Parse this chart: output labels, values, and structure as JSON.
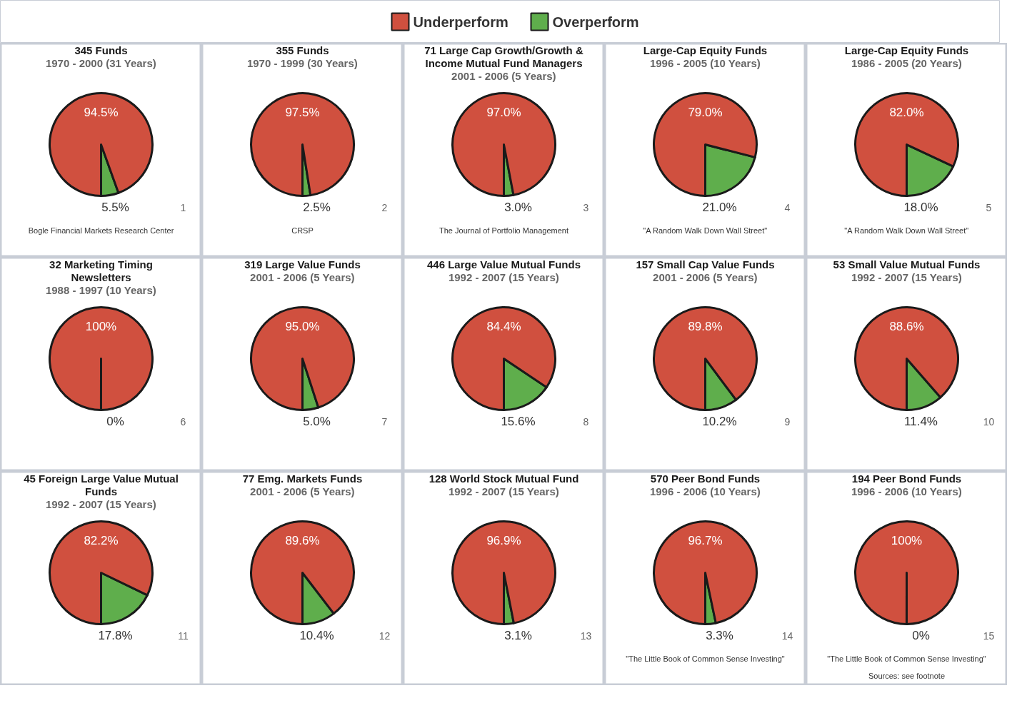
{
  "chart_data": [
    {
      "type": "pie",
      "title": "345 Funds",
      "subtitle": "1970 - 2000 (31 Years)",
      "categories": [
        "Underperform",
        "Overperform"
      ],
      "values": [
        94.5,
        5.5
      ],
      "value_labels": [
        "94.5%",
        "5.5%"
      ],
      "colors": [
        "#d0503f",
        "#5fae4c"
      ],
      "legend": "top",
      "annotations": [
        "Bogle Financial Markets Research Center",
        "1"
      ]
    },
    {
      "type": "pie",
      "title": "355 Funds",
      "subtitle": "1970 - 1999 (30 Years)",
      "categories": [
        null,
        null
      ],
      "values": [
        97.5,
        2.5
      ],
      "value_labels": [
        "97.5%",
        "2.5%"
      ],
      "colors": [
        "#d0503f",
        "#5fae4c"
      ],
      "annotations": [
        "CRSP",
        "2"
      ]
    },
    {
      "type": "pie",
      "title": "71 Large Cap Growth/Growth &\nIncome Mutual Fund Managers",
      "subtitle": "2001 - 2006 (5 Years)",
      "categories": [
        null,
        null
      ],
      "values": [
        97.0,
        3.0
      ],
      "value_labels": [
        "97.0%",
        "3.0%"
      ],
      "colors": [
        "#d0503f",
        "#5fae4c"
      ],
      "annotations": [
        "The Journal of Portfolio Management",
        "3"
      ]
    },
    {
      "type": "pie",
      "title": "Large-Cap Equity Funds",
      "subtitle": "1996 - 2005 (10 Years)",
      "categories": [
        null,
        null
      ],
      "values": [
        79.0,
        21.0
      ],
      "value_labels": [
        "79.0%",
        "21.0%"
      ],
      "colors": [
        "#d0503f",
        "#5fae4c"
      ],
      "annotations": [
        "\"A Random Walk Down Wall Street\"",
        "4"
      ]
    },
    {
      "type": "pie",
      "title": "Large-Cap Equity Funds",
      "subtitle": "1986 - 2005 (20 Years)",
      "categories": [
        null,
        null
      ],
      "values": [
        82.0,
        18.0
      ],
      "value_labels": [
        "82.0%",
        "18.0%"
      ],
      "colors": [
        "#d0503f",
        "#5fae4c"
      ],
      "annotations": [
        "\"A Random Walk Down Wall Street\"",
        "5"
      ]
    },
    {
      "type": "pie",
      "title": "32 Marketing Timing\nNewsletters",
      "subtitle": "1988 - 1997 (10 Years)",
      "categories": [
        null,
        null
      ],
      "values": [
        100,
        0
      ],
      "value_labels": [
        "100%",
        "0%"
      ],
      "colors": [
        "#d0503f",
        "#5fae4c"
      ],
      "annotations": [
        "6"
      ]
    },
    {
      "type": "pie",
      "title": "319 Large Value Funds",
      "subtitle": "2001 - 2006 (5 Years)",
      "categories": [
        null,
        null
      ],
      "values": [
        95.0,
        5.0
      ],
      "value_labels": [
        "95.0%",
        "5.0%"
      ],
      "colors": [
        "#d0503f",
        "#5fae4c"
      ],
      "annotations": [
        "7"
      ]
    },
    {
      "type": "pie",
      "title": "446 Large Value Mutual Funds",
      "subtitle": "1992 - 2007 (15 Years)",
      "categories": [
        null,
        null
      ],
      "values": [
        84.4,
        15.6
      ],
      "value_labels": [
        "84.4%",
        "15.6%"
      ],
      "colors": [
        "#d0503f",
        "#5fae4c"
      ],
      "annotations": [
        "8"
      ]
    },
    {
      "type": "pie",
      "title": "157 Small Cap Value Funds",
      "subtitle": "2001 - 2006 (5 Years)",
      "categories": [
        null,
        null
      ],
      "values": [
        89.8,
        10.2
      ],
      "value_labels": [
        "89.8%",
        "10.2%"
      ],
      "colors": [
        "#d0503f",
        "#5fae4c"
      ],
      "annotations": [
        "9"
      ]
    },
    {
      "type": "pie",
      "title": "53 Small Value Mutual Funds",
      "subtitle": "1992 - 2007 (15 Years)",
      "categories": [
        null,
        null
      ],
      "values": [
        88.6,
        11.4
      ],
      "value_labels": [
        "88.6%",
        "11.4%"
      ],
      "colors": [
        "#d0503f",
        "#5fae4c"
      ],
      "annotations": [
        "10"
      ]
    },
    {
      "type": "pie",
      "title": "45 Foreign Large Value Mutual\nFunds",
      "subtitle": "1992 - 2007 (15 Years)",
      "categories": [
        null,
        null
      ],
      "values": [
        82.2,
        17.8
      ],
      "value_labels": [
        "82.2%",
        "17.8%"
      ],
      "colors": [
        "#d0503f",
        "#5fae4c"
      ],
      "annotations": [
        "11"
      ]
    },
    {
      "type": "pie",
      "title": "77 Emg. Markets Funds",
      "subtitle": "2001 - 2006 (5 Years)",
      "categories": [
        null,
        null
      ],
      "values": [
        89.6,
        10.4
      ],
      "value_labels": [
        "89.6%",
        "10.4%"
      ],
      "colors": [
        "#d0503f",
        "#5fae4c"
      ],
      "annotations": [
        "12"
      ]
    },
    {
      "type": "pie",
      "title": "128 World Stock Mutual Fund",
      "subtitle": "1992 - 2007 (15 Years)",
      "categories": [
        null,
        null
      ],
      "values": [
        96.9,
        3.1
      ],
      "value_labels": [
        "96.9%",
        "3.1%"
      ],
      "colors": [
        "#d0503f",
        "#5fae4c"
      ],
      "annotations": [
        "13"
      ]
    },
    {
      "type": "pie",
      "title": "570 Peer Bond Funds",
      "subtitle": "1996 - 2006 (10 Years)",
      "categories": [
        null,
        null
      ],
      "values": [
        96.7,
        3.3
      ],
      "value_labels": [
        "96.7%",
        "3.3%"
      ],
      "colors": [
        "#d0503f",
        "#5fae4c"
      ],
      "annotations": [
        "\"The Little Book of Common Sense Investing\"",
        "14"
      ]
    },
    {
      "type": "pie",
      "title": "194 Peer Bond Funds",
      "subtitle": "1996 - 2006 (10 Years)",
      "categories": [
        null,
        null
      ],
      "values": [
        100,
        0
      ],
      "value_labels": [
        "100%",
        "0%"
      ],
      "colors": [
        "#d0503f",
        "#5fae4c"
      ],
      "annotations": [
        "\"The Little Book of Common Sense Investing\"",
        "15",
        "Sources: see footnote"
      ]
    }
  ]
}
